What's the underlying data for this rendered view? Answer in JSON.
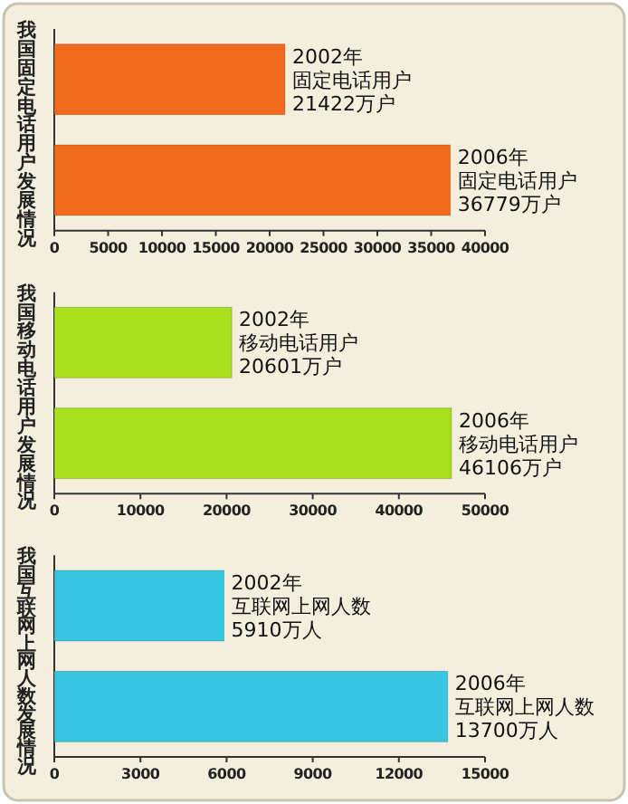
{
  "chart_data": [
    {
      "type": "bar",
      "orientation": "horizontal",
      "ylabel": "我国固定电话用户发展情况",
      "categories": [
        null,
        null
      ],
      "values": [
        21422,
        36779
      ],
      "color": "#f26b1d",
      "xlim": [
        0,
        40000
      ],
      "xticks": [
        0,
        5000,
        10000,
        15000,
        20000,
        25000,
        30000,
        35000,
        40000
      ],
      "value_labels": [
        "2002年固定电话用户21422万户",
        "2006年固定电话用户36779万户"
      ]
    },
    {
      "type": "bar",
      "orientation": "horizontal",
      "ylabel": "我国移动电话用户发展情况",
      "categories": [
        null,
        null
      ],
      "values": [
        20601,
        46106
      ],
      "color": "#a8e01e",
      "xlim": [
        0,
        50000
      ],
      "xticks": [
        0,
        10000,
        20000,
        30000,
        40000,
        50000
      ],
      "value_labels": [
        "2002年移动电话用户20601万户",
        "2006年移动电话用户46106万户"
      ]
    },
    {
      "type": "bar",
      "orientation": "horizontal",
      "ylabel": "我国互联网上网人数发展情况",
      "categories": [
        null,
        null
      ],
      "values": [
        5910,
        13700
      ],
      "color": "#36c6df",
      "xlim": [
        0,
        15000
      ],
      "xticks": [
        0,
        3000,
        6000,
        9000,
        12000,
        15000
      ],
      "value_labels": [
        "2002年互联网上网人数5910万人",
        "2006年互联网上网人数13700万人"
      ]
    }
  ]
}
